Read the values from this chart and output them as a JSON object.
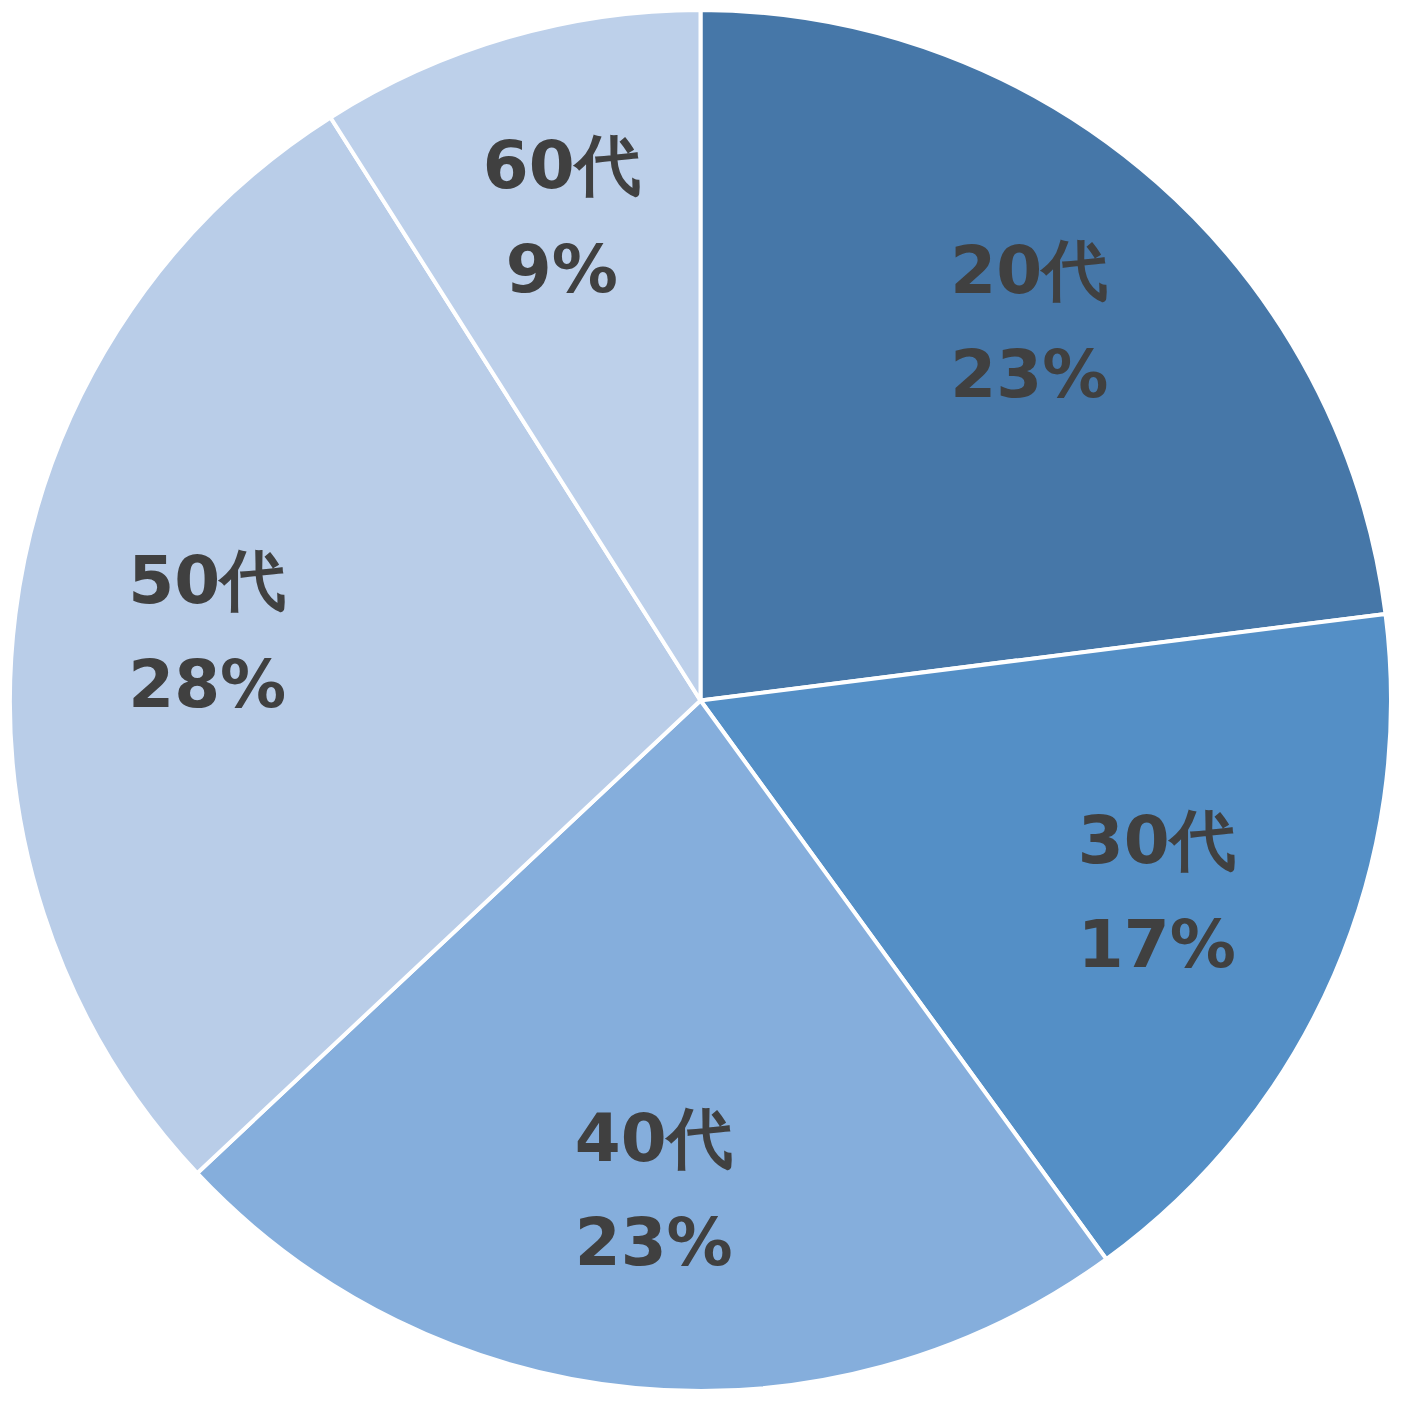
{
  "chart_data": {
    "type": "pie",
    "categories": [
      "20代",
      "30代",
      "40代",
      "50代",
      "60代"
    ],
    "values": [
      23,
      17,
      23,
      28,
      9
    ],
    "colors": [
      "#4677a8",
      "#548fc6",
      "#85aedc",
      "#b9cde8",
      "#bdd0ea"
    ],
    "value_labels": [
      "23%",
      "17%",
      "23%",
      "28%",
      "9%"
    ],
    "legend": false
  }
}
